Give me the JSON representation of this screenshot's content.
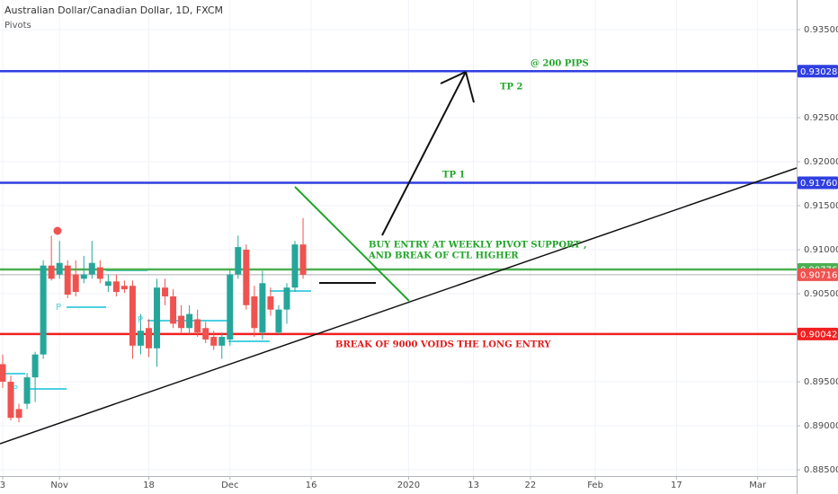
{
  "chart_data": {
    "type": "candlestick",
    "title": "Australian Dollar/Canadian Dollar, 1D, FXCM",
    "subtitle": "Pivots",
    "pivot_label": "P",
    "up_color": "#26a69a",
    "down_color": "#ef5350",
    "xlim": [
      -0.33,
      97.8
    ],
    "ylim": [
      0.88429,
      0.93837
    ],
    "xticks": [
      {
        "value": 0,
        "label": "3"
      },
      {
        "value": 7,
        "label": "Nov"
      },
      {
        "value": 18,
        "label": "18"
      },
      {
        "value": 28,
        "label": "Dec"
      },
      {
        "value": 38,
        "label": "16"
      },
      {
        "value": 50,
        "label": "2020"
      },
      {
        "value": 58,
        "label": "13"
      },
      {
        "value": 65,
        "label": "22"
      },
      {
        "value": 73,
        "label": "Feb"
      },
      {
        "value": 83,
        "label": "17"
      },
      {
        "value": 93,
        "label": "Mar"
      }
    ],
    "yticks": [
      {
        "value": 0.935,
        "label": "0.93500"
      },
      {
        "value": 0.925,
        "label": "0.92500"
      },
      {
        "value": 0.92,
        "label": "0.92000"
      },
      {
        "value": 0.915,
        "label": "0.91500"
      },
      {
        "value": 0.91,
        "label": "0.91000"
      },
      {
        "value": 0.905,
        "label": "0.90500"
      },
      {
        "value": 0.895,
        "label": "0.89500"
      },
      {
        "value": 0.89,
        "label": "0.89000"
      },
      {
        "value": 0.885,
        "label": "0.88500"
      }
    ],
    "x": [
      0,
      1,
      2,
      3,
      4,
      5,
      6,
      7,
      8,
      9,
      10,
      11,
      12,
      13,
      14,
      15,
      16,
      17,
      18,
      19,
      20,
      21,
      22,
      23,
      24,
      25,
      26,
      27,
      28,
      29,
      30,
      31,
      32,
      33,
      34,
      35,
      36,
      37
    ],
    "open": [
      0.897,
      0.895,
      0.8919,
      0.8925,
      0.8955,
      0.8981,
      0.9082,
      0.9072,
      0.9082,
      0.9072,
      0.9067,
      0.9072,
      0.908,
      0.9059,
      0.9064,
      0.9059,
      0.9059,
      0.8991,
      0.9011,
      0.8988,
      0.9057,
      0.9047,
      0.9025,
      0.9011,
      0.9021,
      0.9011,
      0.9001,
      0.8991,
      0.8998,
      0.9072,
      0.91,
      0.9047,
      0.9006,
      0.9047,
      0.9006,
      0.9032,
      0.9057,
      0.9106
    ],
    "high": [
      0.8981,
      0.8957,
      0.8925,
      0.896,
      0.8984,
      0.9088,
      0.9116,
      0.911,
      0.9088,
      0.9088,
      0.9093,
      0.911,
      0.9088,
      0.9072,
      0.9072,
      0.9065,
      0.9065,
      0.9027,
      0.9021,
      0.9067,
      0.9067,
      0.9055,
      0.9037,
      0.9037,
      0.9032,
      0.9018,
      0.9008,
      0.9006,
      0.9078,
      0.9116,
      0.9106,
      0.9059,
      0.9076,
      0.9057,
      0.9037,
      0.9062,
      0.911,
      0.9136
    ],
    "low": [
      0.8943,
      0.8906,
      0.8904,
      0.8919,
      0.8927,
      0.8976,
      0.9065,
      0.9067,
      0.9045,
      0.9047,
      0.9062,
      0.9067,
      0.9062,
      0.9052,
      0.9047,
      0.9051,
      0.8976,
      0.8981,
      0.8978,
      0.8967,
      0.9037,
      0.9011,
      0.9006,
      0.9004,
      0.9001,
      0.8994,
      0.8986,
      0.8976,
      0.8991,
      0.9067,
      0.9032,
      0.9001,
      0.8998,
      0.9025,
      0.9004,
      0.9016,
      0.9052,
      0.9067
    ],
    "close": [
      0.895,
      0.8909,
      0.8909,
      0.8955,
      0.8981,
      0.9082,
      0.9067,
      0.9085,
      0.9049,
      0.9052,
      0.9072,
      0.9085,
      0.9067,
      0.9064,
      0.9052,
      0.9055,
      0.8991,
      0.9008,
      0.8988,
      0.9057,
      0.9047,
      0.9016,
      0.9011,
      0.9027,
      0.9006,
      0.8998,
      0.8991,
      0.9001,
      0.9072,
      0.9103,
      0.9037,
      0.9011,
      0.9062,
      0.9032,
      0.9032,
      0.9057,
      0.9106,
      0.90716
    ],
    "levels": [
      {
        "value": 0.93028,
        "label": "0.93028",
        "color": "#2f3fe0"
      },
      {
        "value": 0.9176,
        "label": "0.91760",
        "color": "#2f3fe0"
      },
      {
        "value": 0.90776,
        "label": "0.90776",
        "color": "#4caf50"
      },
      {
        "value": 0.90716,
        "label": "0.90716",
        "color": "#ef5350"
      },
      {
        "value": 0.90042,
        "label": "0.90042",
        "color": "#f02020"
      }
    ],
    "annotations": [
      {
        "text": "@ 200 PIPS",
        "color": "#22a52a"
      },
      {
        "text": "TP 2",
        "color": "#22a52a"
      },
      {
        "text": "TP 1",
        "color": "#22a52a"
      },
      {
        "text": "BUY ENTRY AT WEEKLY PIVOT SUPPORT ,",
        "color": "#22a52a"
      },
      {
        "text": "AND BREAK OF CTL HIGHER",
        "color": "#22a52a"
      },
      {
        "text": "BREAK OF 9000 VOIDS THE LONG ENTRY",
        "color": "#e01b1b"
      }
    ]
  }
}
